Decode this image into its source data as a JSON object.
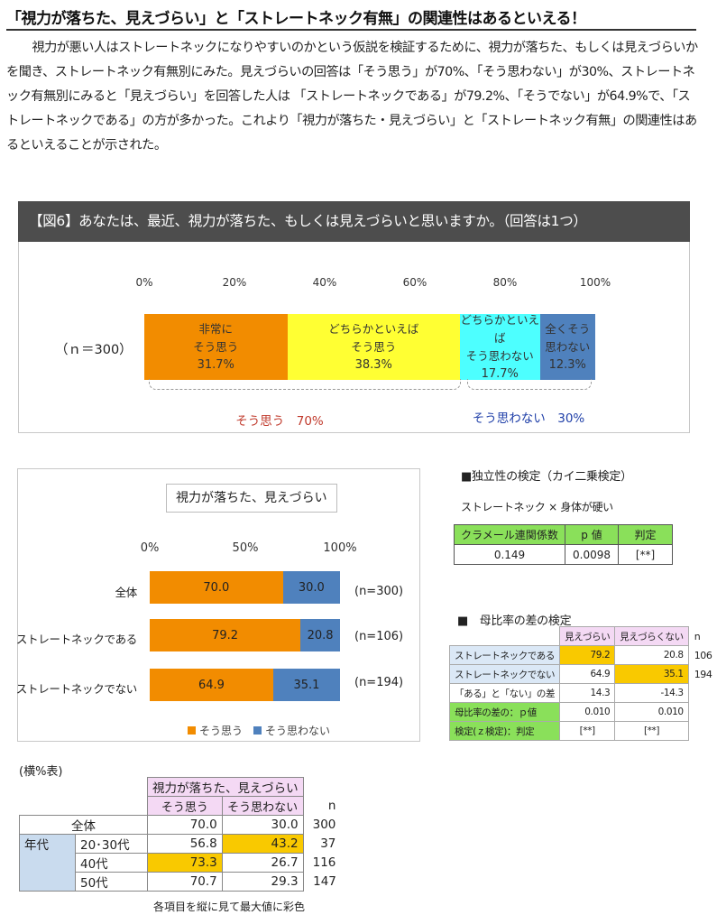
{
  "headline": "「視力が落ちた、見えづらい」と「ストレートネック有無」の関連性はあるといえる！",
  "body_text": "視力が悪い人はストレートネックになりやすいのかという仮説を検証するために、視力が落ちた、もしくは見えづらいかを聞き、ストレートネック有無別にみた。見えづらいの回答は「そう思う」が70%、「そう思わない」が30%、ストレートネック有無別にみると「見えづらい」を回答した人は 「ストレートネックである」が79.2%、「そうでない」が64.9%で、「ストレートネックである」の方が多かった。これより「視力が落ちた・見えづらい」と「ストレートネック有無」の関連性はあるといえることが示された。",
  "figure6": {
    "title": "【図6】あなたは、最近、視力が落ちた、もしくは見えづらいと思いますか。（回答は1つ）",
    "ticks": [
      "0%",
      "20%",
      "40%",
      "60%",
      "80%",
      "100%"
    ],
    "row_label": "（ｎ＝300）",
    "segments": [
      {
        "l1": "非常に",
        "l2": "そう思う",
        "value": "31.7%",
        "v": 31.7,
        "color": "#f28c00"
      },
      {
        "l1": "どちらかといえば",
        "l2": "そう思う",
        "value": "38.3%",
        "v": 38.3,
        "color": "#ffff33"
      },
      {
        "l1": "どちらかといえば",
        "l2": "そう思わない",
        "value": "17.7%",
        "v": 17.7,
        "color": "#4dffff"
      },
      {
        "l1": "全くそう",
        "l2": "思わない",
        "value": "12.3%",
        "v": 12.3,
        "color": "#4f81bd"
      }
    ],
    "group_agree": "そう思う　70%",
    "group_agree_color": "#c0392b",
    "group_disagree": "そう思わない　30%",
    "group_disagree_color": "#1f3fa8"
  },
  "chart2": {
    "title": "視力が落ちた、見えづらい",
    "ticks": [
      "0%",
      "50%",
      "100%"
    ],
    "rows": [
      {
        "label": "全体",
        "agree": 70.0,
        "agree_label": "70.0",
        "disagree": 30.0,
        "disagree_label": "30.0",
        "n": "(n=300)"
      },
      {
        "label": "ストレートネックである",
        "agree": 79.2,
        "agree_label": "79.2",
        "disagree": 20.8,
        "disagree_label": "20.8",
        "n": "(n=106)"
      },
      {
        "label": "ストレートネックでない",
        "agree": 64.9,
        "agree_label": "64.9",
        "disagree": 35.1,
        "disagree_label": "35.1",
        "n": "(n=194)"
      }
    ],
    "legend_agree": "そう思う",
    "legend_disagree": "そう思わない",
    "color_agree": "#f28c00",
    "color_disagree": "#4f81bd"
  },
  "chart_data": {
    "type": "bar",
    "title": "視力が落ちた、見えづらい",
    "orientation": "horizontal-stacked",
    "categories": [
      "全体",
      "ストレートネックである",
      "ストレートネックでない"
    ],
    "series": [
      {
        "name": "そう思う",
        "values": [
          70.0,
          79.2,
          64.9
        ]
      },
      {
        "name": "そう思わない",
        "values": [
          30.0,
          20.8,
          35.1
        ]
      }
    ],
    "xlim": [
      0,
      100
    ],
    "legend": "bottom"
  },
  "independence": {
    "title": "■独立性の検定（カイ二乗検定）",
    "subtitle": "ストレートネック × 身体が硬い",
    "headers": [
      "クラメール連関係数",
      "p 値",
      "判定"
    ],
    "values": [
      "0.149",
      "0.0098",
      "[**]"
    ]
  },
  "ratio_test": {
    "title": "■　母比率の差の検定",
    "col_headers": [
      "見えづらい",
      "見えづらくない"
    ],
    "n_header": "n",
    "rows": [
      {
        "label": "ストレートネックである",
        "v1": "79.2",
        "v2": "20.8",
        "n": "106"
      },
      {
        "label": "ストレートネックでない",
        "v1": "64.9",
        "v2": "35.1",
        "n": "194"
      },
      {
        "label": "「ある」と「ない」の差",
        "v1": "14.3",
        "v2": "-14.3"
      }
    ],
    "p_label": "母比率の差の：ｐ値",
    "p_values": [
      "0.010",
      "0.010"
    ],
    "judge_label": "検定(ｚ検定)：判定",
    "judge_values": [
      "[**]",
      "[**]"
    ]
  },
  "crosstab": {
    "title": "(横%表)",
    "main_header": "視力が落ちた、見えづらい",
    "col_headers": [
      "そう思う",
      "そう思わない"
    ],
    "n_header": "n",
    "total": {
      "label": "全体",
      "v1": "70.0",
      "v2": "30.0",
      "n": "300"
    },
    "group_label": "年代",
    "rows": [
      {
        "label": "20･30代",
        "v1": "56.8",
        "v2": "43.2",
        "n": "37"
      },
      {
        "label": "40代",
        "v1": "73.3",
        "v2": "26.7",
        "n": "116"
      },
      {
        "label": "50代",
        "v1": "70.7",
        "v2": "29.3",
        "n": "147"
      }
    ],
    "note": "各項目を縦に見て最大値に彩色"
  }
}
